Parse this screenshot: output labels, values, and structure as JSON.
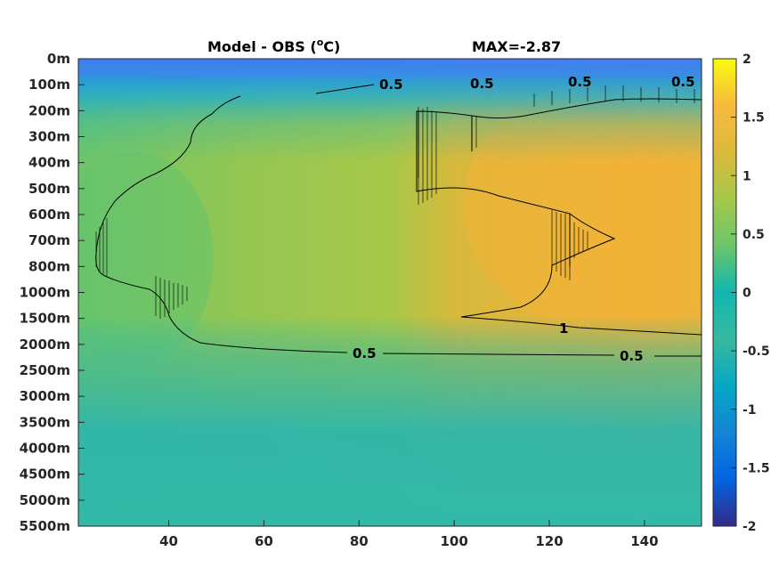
{
  "chart_data": {
    "type": "heatmap",
    "title": "Model - OBS (°C)",
    "title_parts": {
      "main": "Model - OBS (",
      "superscript": "o",
      "unit": "C)"
    },
    "annotation": "MAX=-2.87",
    "x_ticks": [
      40,
      60,
      80,
      100,
      120,
      140
    ],
    "xlim": [
      21,
      152
    ],
    "y_ticks": [
      "0m",
      "100m",
      "200m",
      "300m",
      "400m",
      "500m",
      "600m",
      "700m",
      "800m",
      "1000m",
      "1500m",
      "2000m",
      "2500m",
      "3000m",
      "3500m",
      "4000m",
      "4500m",
      "5000m",
      "5500m"
    ],
    "y_reversed": true,
    "colorbar": {
      "ticks": [
        2,
        1.5,
        1,
        0.5,
        0,
        -0.5,
        -1,
        -1.5,
        -2
      ],
      "labels": [
        "2",
        "1.5",
        "1",
        "0.5",
        "0",
        "-0.5",
        "-1",
        "-1.5",
        "-2"
      ],
      "range": [
        -2,
        2
      ],
      "colormap": "parula"
    },
    "contour_levels": [
      0.5,
      1
    ],
    "contour_labels": [
      {
        "text": "0.5",
        "x": 82,
        "depth": "100m"
      },
      {
        "text": "0.5",
        "x": 101,
        "depth": "100m"
      },
      {
        "text": "0.5",
        "x": 122,
        "depth": "100m"
      },
      {
        "text": "0.5",
        "x": 149,
        "depth": "100m"
      },
      {
        "text": "0.5",
        "x": 80,
        "depth": "2000m"
      },
      {
        "text": "0.5",
        "x": 141,
        "depth": "2000m"
      },
      {
        "text": "1",
        "x": 123,
        "depth": "1500m"
      }
    ],
    "field_description": {
      "surface_layer": "negative anomaly near 0m-100m",
      "west_interior": "values around 0.3 to 0.6",
      "east_interior": "values around 1 to 1.3 between 200m and 1500m",
      "deep": "values near 0 to 0.3 below 2500m"
    },
    "colors": {
      "background": "#ffffff",
      "axes": "#262626",
      "contour": "#000000"
    }
  }
}
